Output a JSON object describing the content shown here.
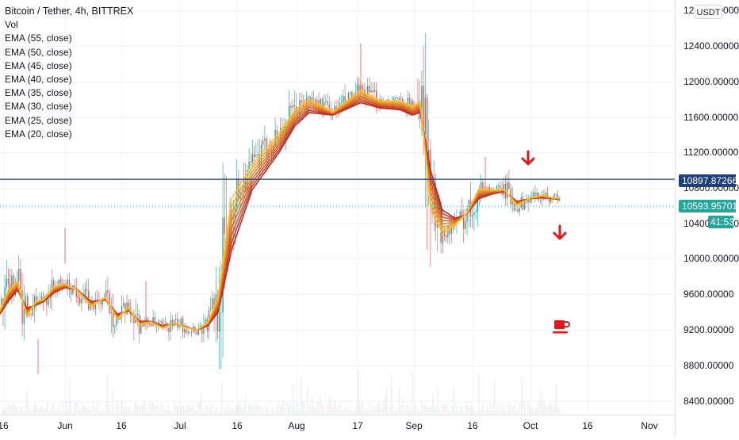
{
  "legend": {
    "title": "Bitcoin / Tether, 4h, BITTREX",
    "items": [
      "Vol",
      "EMA (55, close)",
      "EMA (50, close)",
      "EMA (45, close)",
      "EMA (40, close)",
      "EMA (35, close)",
      "EMA (30, close)",
      "EMA (25, close)",
      "EMA (20, close)"
    ]
  },
  "unit": "USDT",
  "price_labels": {
    "horizontal_line": "10897.87266",
    "last_price": "10593.95701",
    "countdown": "41:53"
  },
  "colors": {
    "horizontal_line": "#1e3f7a",
    "last_price": "#26a69a",
    "annotation": "#e8151a",
    "ema_slow": "#b71c1c",
    "ema_fast": "#fbc02d",
    "candle_up": "#26a69a",
    "candle_down": "#ef5350"
  },
  "annotations": [
    "arrow-down-icon",
    "arrow-down-icon",
    "coffee-cup-icon"
  ],
  "chart_data": {
    "type": "line",
    "title": "Bitcoin / Tether, 4h, BITTREX",
    "yunit": "USDT",
    "ylim": [
      8250,
      12800
    ],
    "y_ticks": [
      "12800.00000",
      "12400.00000",
      "12000.00000",
      "11600.00000",
      "11200.00000",
      "10800.00000",
      "10400.00000",
      "10000.00000",
      "9600.00000",
      "9200.00000",
      "8800.00000",
      "8400.00000"
    ],
    "x_ticks": [
      "16",
      "Jun",
      "16",
      "Jul",
      "16",
      "Aug",
      "17",
      "Sep",
      "16",
      "Oct",
      "16",
      "Nov"
    ],
    "x": [
      "May 15",
      "May 18",
      "May 22",
      "May 25",
      "May 28",
      "May 31",
      "Jun 4",
      "Jun 8",
      "Jun 12",
      "Jun 16",
      "Jun 20",
      "Jun 24",
      "Jun 28",
      "Jul 1",
      "Jul 5",
      "Jul 9",
      "Jul 13",
      "Jul 17",
      "Jul 21",
      "Jul 25",
      "Jul 27",
      "Jul 29",
      "Aug 1",
      "Aug 4",
      "Aug 7",
      "Aug 10",
      "Aug 14",
      "Aug 17",
      "Aug 20",
      "Aug 24",
      "Aug 28",
      "Sep 1",
      "Sep 3",
      "Sep 6",
      "Sep 9",
      "Sep 12",
      "Sep 16",
      "Sep 19",
      "Sep 22",
      "Sep 25",
      "Sep 28",
      "Oct 1",
      "Oct 4",
      "Oct 7"
    ],
    "series": [
      {
        "name": "EMA (20, close)",
        "values": [
          9430,
          9640,
          9750,
          9350,
          9520,
          9550,
          9690,
          9720,
          9640,
          9470,
          9570,
          9320,
          9460,
          9260,
          9290,
          9220,
          9280,
          9230,
          9200,
          9290,
          9570,
          10680,
          11060,
          11420,
          11680,
          11800,
          11660,
          11900,
          11780,
          11780,
          11720,
          11770,
          10580,
          10280,
          10380,
          10510,
          10790,
          10780,
          10780,
          10600,
          10690,
          10720,
          10690,
          10690
        ]
      },
      {
        "name": "EMA (55, close)",
        "values": [
          9380,
          9520,
          9650,
          9450,
          9480,
          9520,
          9620,
          9680,
          9650,
          9520,
          9540,
          9380,
          9420,
          9300,
          9300,
          9250,
          9270,
          9240,
          9200,
          9250,
          9400,
          10100,
          10780,
          11200,
          11500,
          11650,
          11620,
          11760,
          11700,
          11680,
          11620,
          11650,
          11000,
          10550,
          10460,
          10500,
          10680,
          10730,
          10760,
          10650,
          10680,
          10690,
          10680,
          10670
        ]
      }
    ],
    "horizontal_lines": [
      10897.87266
    ],
    "last_price": 10593.95701
  }
}
